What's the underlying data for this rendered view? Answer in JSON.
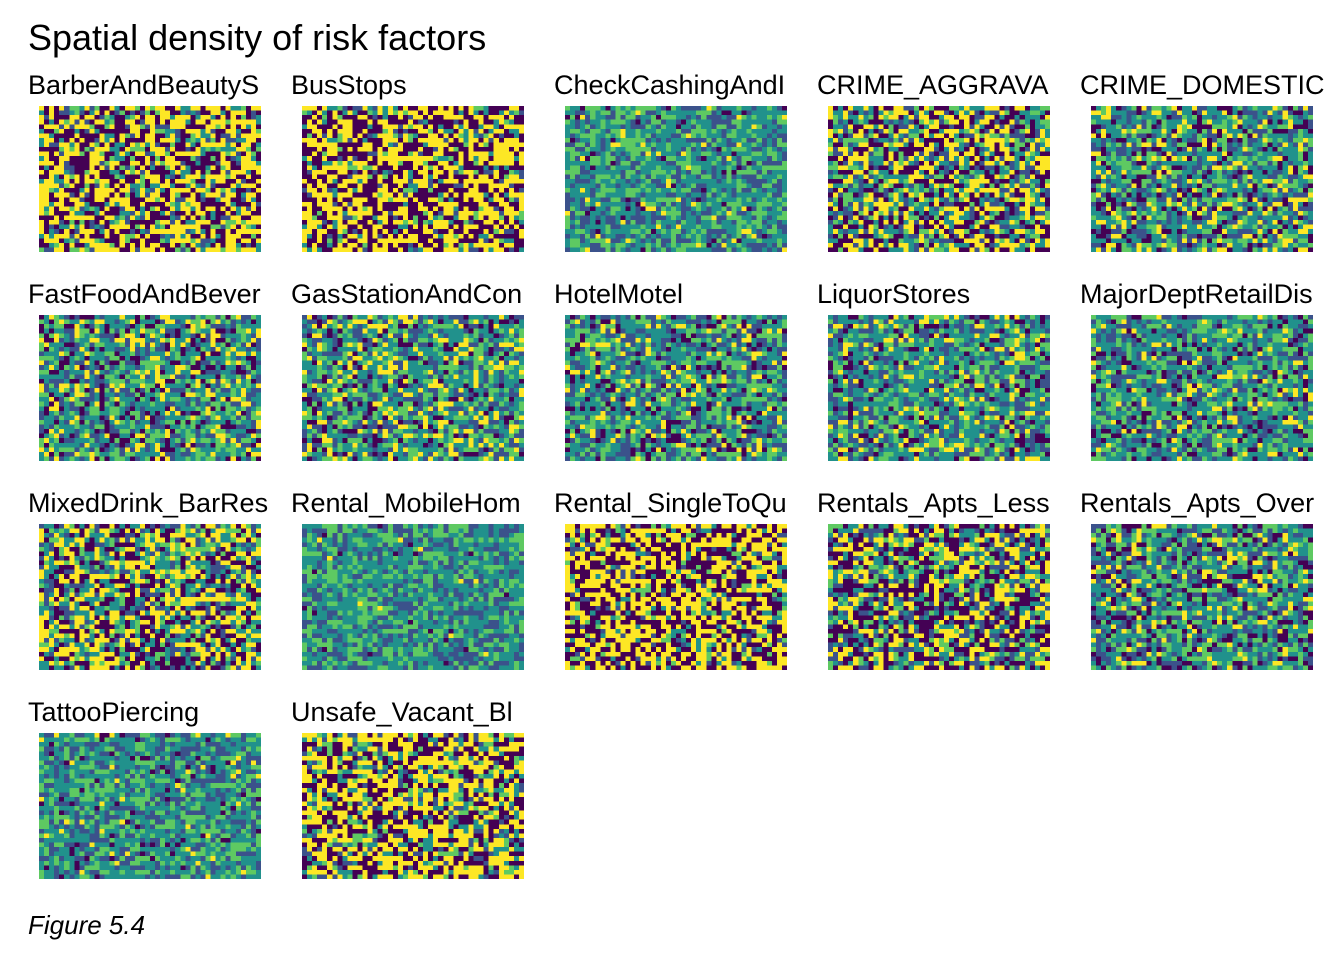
{
  "title": "Spatial density of risk factors",
  "caption": "Figure 5.4",
  "chart_data": {
    "type": "heatmap",
    "title": "Spatial density of risk factors",
    "layout": "facet grid, 5 columns x 4 rows",
    "legend": "none",
    "palette": [
      "#440154",
      "#3b528b",
      "#21918c",
      "#5ec962",
      "#fde725"
    ],
    "panels": [
      {
        "label": "BarberAndBeautyS",
        "high_fraction": 0.38,
        "low_fraction": 0.34,
        "character": "high contrast, dark cluster in center"
      },
      {
        "label": "BusStops",
        "high_fraction": 0.42,
        "low_fraction": 0.4,
        "character": "high contrast, dark cluster in center"
      },
      {
        "label": "CheckCashingAndI",
        "high_fraction": 0.04,
        "low_fraction": 0.03,
        "character": "mostly teal, faint horizontal line"
      },
      {
        "label": "CRIME_AGGRAVA",
        "high_fraction": 0.3,
        "low_fraction": 0.24,
        "character": "mixed, dark cluster in center"
      },
      {
        "label": "CRIME_DOMESTIC",
        "high_fraction": 0.15,
        "low_fraction": 0.14,
        "character": "mixed, mostly green"
      },
      {
        "label": "FastFoodAndBever",
        "high_fraction": 0.16,
        "low_fraction": 0.15,
        "character": "mixed"
      },
      {
        "label": "GasStationAndCon",
        "high_fraction": 0.16,
        "low_fraction": 0.12,
        "character": "mixed"
      },
      {
        "label": "HotelMotel",
        "high_fraction": 0.1,
        "low_fraction": 0.12,
        "character": "mostly teal, faint vertical line"
      },
      {
        "label": "LiquorStores",
        "high_fraction": 0.12,
        "low_fraction": 0.1,
        "character": "mixed, mostly green"
      },
      {
        "label": "MajorDeptRetailDis",
        "high_fraction": 0.08,
        "low_fraction": 0.1,
        "character": "mostly teal"
      },
      {
        "label": "MixedDrink_BarRes",
        "high_fraction": 0.28,
        "low_fraction": 0.26,
        "character": "mixed, dark band in middle"
      },
      {
        "label": "Rental_MobileHom",
        "high_fraction": 0.01,
        "low_fraction": 0.01,
        "character": "almost uniform teal, faint line near bottom"
      },
      {
        "label": "Rental_SingleToQu",
        "high_fraction": 0.42,
        "low_fraction": 0.38,
        "character": "high contrast"
      },
      {
        "label": "Rentals_Apts_Less",
        "high_fraction": 0.28,
        "low_fraction": 0.3,
        "character": "high contrast"
      },
      {
        "label": "Rentals_Apts_Over",
        "high_fraction": 0.1,
        "low_fraction": 0.15,
        "character": "mostly teal, dark streak"
      },
      {
        "label": "TattooPiercing",
        "high_fraction": 0.03,
        "low_fraction": 0.05,
        "character": "mostly teal, faint horizontal line"
      },
      {
        "label": "Unsafe_Vacant_Bl",
        "high_fraction": 0.4,
        "low_fraction": 0.3,
        "character": "high contrast, dark cluster in center"
      }
    ]
  }
}
